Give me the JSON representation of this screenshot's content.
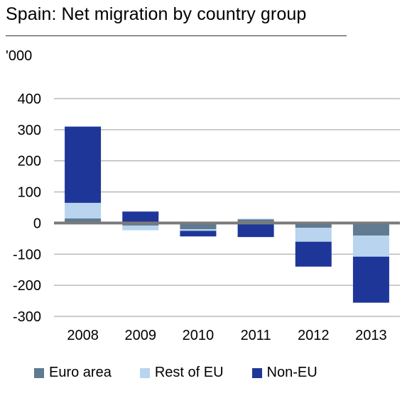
{
  "title": "Spain: Net migration by country group",
  "unit": "'000",
  "chart_data": {
    "type": "bar",
    "stacked": true,
    "title": "Spain: Net migration by country group",
    "ylabel": "'000",
    "xlabel": "",
    "categories": [
      "2008",
      "2009",
      "2010",
      "2011",
      "2012",
      "2013"
    ],
    "ylim": [
      -300,
      400
    ],
    "yticks": [
      "400",
      "300",
      "200",
      "100",
      "0",
      "-100",
      "-200",
      "-300"
    ],
    "grid": true,
    "legend_position": "bottom",
    "series": [
      {
        "name": "Euro area",
        "color": "#5f7a91",
        "values": [
          15,
          -8,
          -20,
          12,
          -15,
          -40
        ]
      },
      {
        "name": "Rest of EU",
        "color": "#b8d4ee",
        "values": [
          50,
          -15,
          -5,
          2,
          -45,
          -68
        ]
      },
      {
        "name": "Non-EU",
        "color": "#1f3699",
        "values": [
          245,
          37,
          -18,
          -45,
          -80,
          -148
        ]
      }
    ]
  }
}
